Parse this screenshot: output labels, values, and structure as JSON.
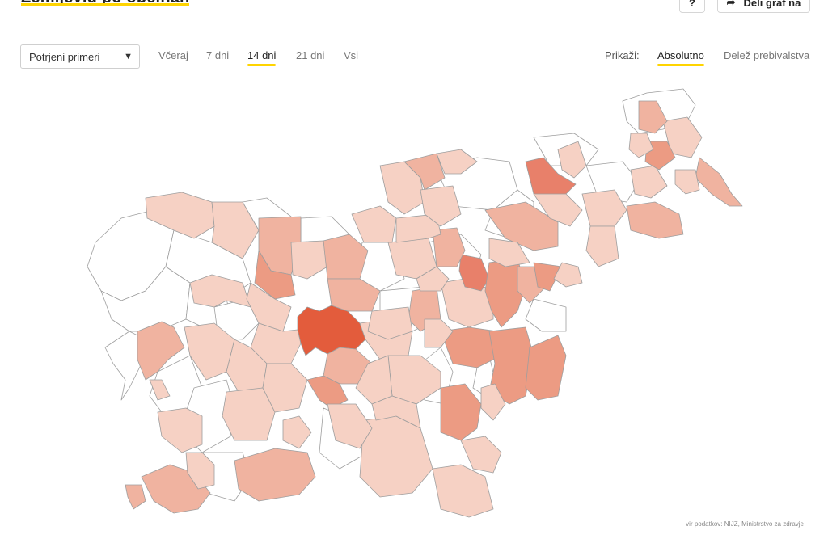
{
  "header": {
    "title": "Zemljevid po občinah",
    "help_label": "?",
    "share_label": "Deli graf na"
  },
  "controls": {
    "metric_select": "Potrjeni primeri",
    "periods": [
      "Včeraj",
      "7 dni",
      "14 dni",
      "21 dni",
      "Vsi"
    ],
    "active_period": "14 dni",
    "show_label": "Prikaži:",
    "show_options": [
      "Absolutno",
      "Delež prebivalstva"
    ],
    "active_show": "Absolutno"
  },
  "map": {
    "colors": {
      "none": "#ffffff",
      "low": "#f6d1c4",
      "mid": "#f0b3a0",
      "high": "#ec9b83",
      "higher": "#e8806a",
      "max": "#e35c3c",
      "border": "#9e9e9e"
    }
  },
  "source_text": "vir podatkov: NIJZ, Ministrstvo za zdravje"
}
